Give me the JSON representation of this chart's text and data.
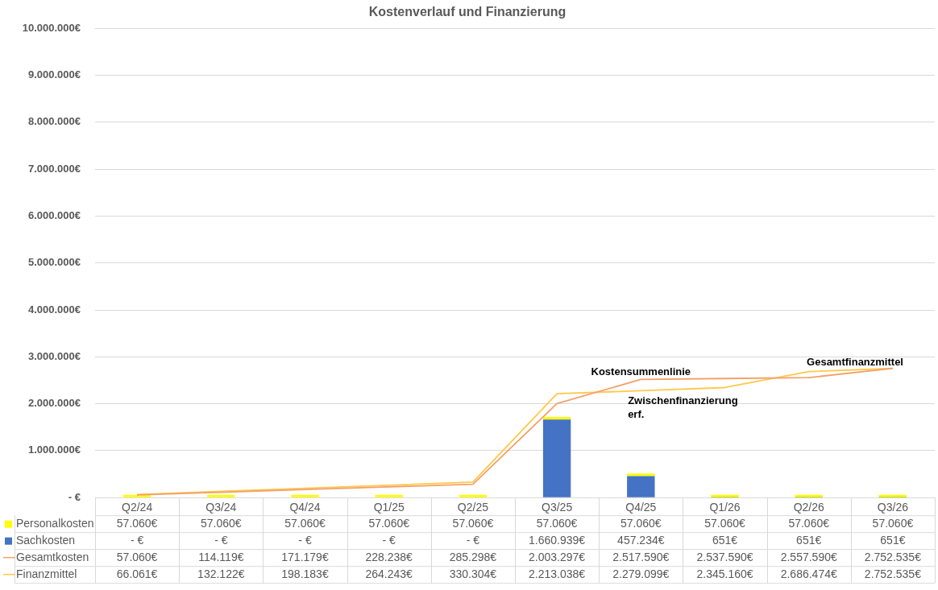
{
  "chart_data": {
    "type": "bar",
    "title": "Kostenverlauf und Finanzierung",
    "categories": [
      "Q2/24",
      "Q3/24",
      "Q4/24",
      "Q1/25",
      "Q2/25",
      "Q3/25",
      "Q4/25",
      "Q1/26",
      "Q2/26",
      "Q3/26"
    ],
    "stacked": true,
    "series": [
      {
        "name": "Sachkosten",
        "color": "#4472c4",
        "values": [
          0,
          0,
          0,
          0,
          0,
          1660939,
          457234,
          651,
          651,
          651
        ],
        "value_labels": [
          "- €",
          "- €",
          "- €",
          "- €",
          "- €",
          "1.660.939€",
          "457.234€",
          "651€",
          "651€",
          "651€"
        ]
      },
      {
        "name": "Personalkosten",
        "color": "#ffff00",
        "values": [
          57060,
          57060,
          57060,
          57060,
          57060,
          57060,
          57060,
          57060,
          57060,
          57060
        ],
        "value_labels": [
          "57.060€",
          "57.060€",
          "57.060€",
          "57.060€",
          "57.060€",
          "57.060€",
          "57.060€",
          "57.060€",
          "57.060€",
          "57.060€"
        ]
      },
      {
        "name": "Gesamtkosten",
        "type": "line",
        "color": "#f4a06a",
        "values": [
          57060,
          114119,
          171179,
          228238,
          285298,
          2003297,
          2517590,
          2537590,
          2557590,
          2752535
        ],
        "value_labels": [
          "57.060€",
          "114.119€",
          "171.179€",
          "228.238€",
          "285.298€",
          "2.003.297€",
          "2.517.590€",
          "2.537.590€",
          "2.557.590€",
          "2.752.535€"
        ]
      },
      {
        "name": "Finanzmittel",
        "type": "line",
        "color": "#fdc94a",
        "values": [
          66061,
          132122,
          198183,
          264243,
          330304,
          2213038,
          2279099,
          2345160,
          2686474,
          2752535
        ],
        "value_labels": [
          "66.061€",
          "132.122€",
          "198.183€",
          "264.243€",
          "330.304€",
          "2.213.038€",
          "2.279.099€",
          "2.345.160€",
          "2.686.474€",
          "2.752.535€"
        ]
      }
    ],
    "ylim": [
      0,
      10000000
    ],
    "yticks": [
      {
        "value": 0,
        "label": "- €"
      },
      {
        "value": 1000000,
        "label": "1.000.000€"
      },
      {
        "value": 2000000,
        "label": "2.000.000€"
      },
      {
        "value": 3000000,
        "label": "3.000.000€"
      },
      {
        "value": 4000000,
        "label": "4.000.000€"
      },
      {
        "value": 5000000,
        "label": "5.000.000€"
      },
      {
        "value": 6000000,
        "label": "6.000.000€"
      },
      {
        "value": 7000000,
        "label": "7.000.000€"
      },
      {
        "value": 8000000,
        "label": "8.000.000€"
      },
      {
        "value": 9000000,
        "label": "9.000.000€"
      },
      {
        "value": 10000000,
        "label": "10.000.000€"
      }
    ],
    "grid": "y",
    "marker": "none",
    "legend": "bottom",
    "line_style": "solid",
    "annotations": [
      "Kostensummenlinie",
      "Gesamtfinanzmittel",
      "Zwischenfinanzierung erf."
    ]
  }
}
